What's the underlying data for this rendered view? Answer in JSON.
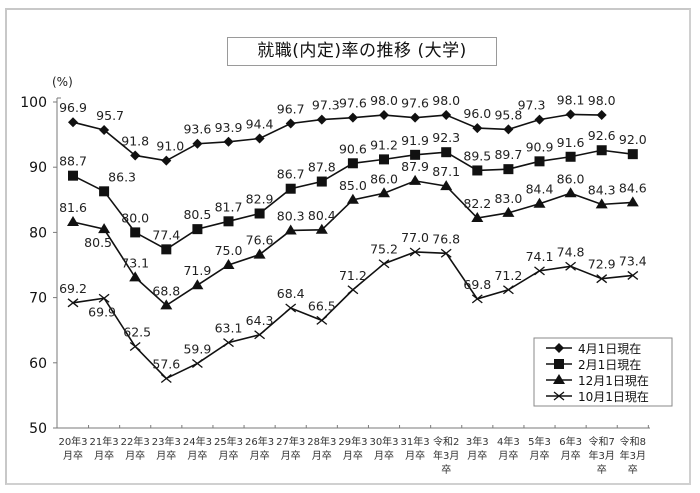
{
  "chart_data": {
    "type": "line",
    "title": "就職(内定)率の推移 (大学)",
    "ylabel": "(%)",
    "xlabel": "",
    "ylim": [
      50,
      100
    ],
    "yticks": [
      50,
      60,
      70,
      80,
      90,
      100
    ],
    "grid": false,
    "legend_position": "lower right",
    "categories": [
      [
        "20年3",
        "月卒"
      ],
      [
        "21年3",
        "月卒"
      ],
      [
        "22年3",
        "月卒"
      ],
      [
        "23年3",
        "月卒"
      ],
      [
        "24年3",
        "月卒"
      ],
      [
        "25年3",
        "月卒"
      ],
      [
        "26年3",
        "月卒"
      ],
      [
        "27年3",
        "月卒"
      ],
      [
        "28年3",
        "月卒"
      ],
      [
        "29年3",
        "月卒"
      ],
      [
        "30年3",
        "月卒"
      ],
      [
        "31年3",
        "月卒"
      ],
      [
        "令和2",
        "年3月",
        "卒"
      ],
      [
        "3年3",
        "月卒"
      ],
      [
        "4年3",
        "月卒"
      ],
      [
        "5年3",
        "月卒"
      ],
      [
        "6年3",
        "月卒"
      ],
      [
        "令和7",
        "年3月",
        "卒"
      ],
      [
        "令和8",
        "年3月",
        "卒"
      ]
    ],
    "series": [
      {
        "name": "4月1日現在",
        "marker": "diamond",
        "values": [
          96.9,
          95.7,
          91.8,
          91.0,
          93.6,
          93.9,
          94.4,
          96.7,
          97.3,
          97.6,
          98.0,
          97.6,
          98.0,
          96.0,
          95.8,
          97.3,
          98.1,
          98.0,
          null
        ],
        "label_offsets": [
          [
            0,
            -10
          ],
          [
            6,
            -10
          ],
          [
            0,
            -10
          ],
          [
            4,
            -10
          ],
          [
            0,
            -10
          ],
          [
            0,
            -10
          ],
          [
            0,
            -10
          ],
          [
            0,
            -10
          ],
          [
            4,
            -10
          ],
          [
            0,
            -10
          ],
          [
            0,
            -10
          ],
          [
            0,
            -10
          ],
          [
            0,
            -10
          ],
          [
            0,
            -10
          ],
          [
            0,
            -10
          ],
          [
            -8,
            -10
          ],
          [
            0,
            -10
          ],
          [
            0,
            -10
          ]
        ]
      },
      {
        "name": "2月1日現在",
        "marker": "square",
        "values": [
          88.7,
          86.3,
          80.0,
          77.4,
          80.5,
          81.7,
          82.9,
          86.7,
          87.8,
          90.6,
          91.2,
          91.9,
          92.3,
          89.5,
          89.7,
          90.9,
          91.6,
          92.6,
          92.0
        ],
        "label_offsets": [
          [
            0,
            -10
          ],
          [
            18,
            -10
          ],
          [
            0,
            -10
          ],
          [
            0,
            -10
          ],
          [
            0,
            -10
          ],
          [
            0,
            -10
          ],
          [
            0,
            -10
          ],
          [
            0,
            -10
          ],
          [
            0,
            -10
          ],
          [
            0,
            -10
          ],
          [
            0,
            -10
          ],
          [
            0,
            -10
          ],
          [
            0,
            -10
          ],
          [
            0,
            -10
          ],
          [
            0,
            -10
          ],
          [
            0,
            -10
          ],
          [
            0,
            -10
          ],
          [
            0,
            -10
          ],
          [
            0,
            -10
          ]
        ]
      },
      {
        "name": "12月1日現在",
        "marker": "triangle",
        "values": [
          81.6,
          80.5,
          73.1,
          68.8,
          71.9,
          75.0,
          76.6,
          80.3,
          80.4,
          85.0,
          86.0,
          87.9,
          87.1,
          82.2,
          83.0,
          84.4,
          86.0,
          84.3,
          84.6
        ],
        "label_offsets": [
          [
            0,
            -10
          ],
          [
            -6,
            18
          ],
          [
            0,
            -10
          ],
          [
            0,
            -10
          ],
          [
            0,
            -10
          ],
          [
            0,
            -10
          ],
          [
            0,
            -10
          ],
          [
            0,
            -10
          ],
          [
            0,
            -10
          ],
          [
            0,
            -10
          ],
          [
            0,
            -10
          ],
          [
            0,
            -10
          ],
          [
            0,
            -10
          ],
          [
            0,
            -10
          ],
          [
            0,
            -10
          ],
          [
            0,
            -10
          ],
          [
            0,
            -10
          ],
          [
            0,
            -10
          ],
          [
            0,
            -10
          ]
        ]
      },
      {
        "name": "10月1日現在",
        "marker": "x",
        "values": [
          69.2,
          69.9,
          62.5,
          57.6,
          59.9,
          63.1,
          64.3,
          68.4,
          66.5,
          71.2,
          75.2,
          77.0,
          76.8,
          69.8,
          71.2,
          74.1,
          74.8,
          72.9,
          73.4
        ],
        "label_offsets": [
          [
            0,
            -10
          ],
          [
            -2,
            18
          ],
          [
            2,
            -10
          ],
          [
            0,
            -10
          ],
          [
            0,
            -10
          ],
          [
            0,
            -10
          ],
          [
            0,
            -10
          ],
          [
            0,
            -10
          ],
          [
            0,
            -10
          ],
          [
            0,
            -10
          ],
          [
            0,
            -10
          ],
          [
            0,
            -10
          ],
          [
            0,
            -10
          ],
          [
            0,
            -10
          ],
          [
            0,
            -10
          ],
          [
            0,
            -10
          ],
          [
            0,
            -10
          ],
          [
            0,
            -10
          ],
          [
            0,
            -10
          ]
        ]
      }
    ]
  },
  "colors": {
    "line": "#111111",
    "frame": "#c8c8c8",
    "axis": "#7a7a7a"
  }
}
